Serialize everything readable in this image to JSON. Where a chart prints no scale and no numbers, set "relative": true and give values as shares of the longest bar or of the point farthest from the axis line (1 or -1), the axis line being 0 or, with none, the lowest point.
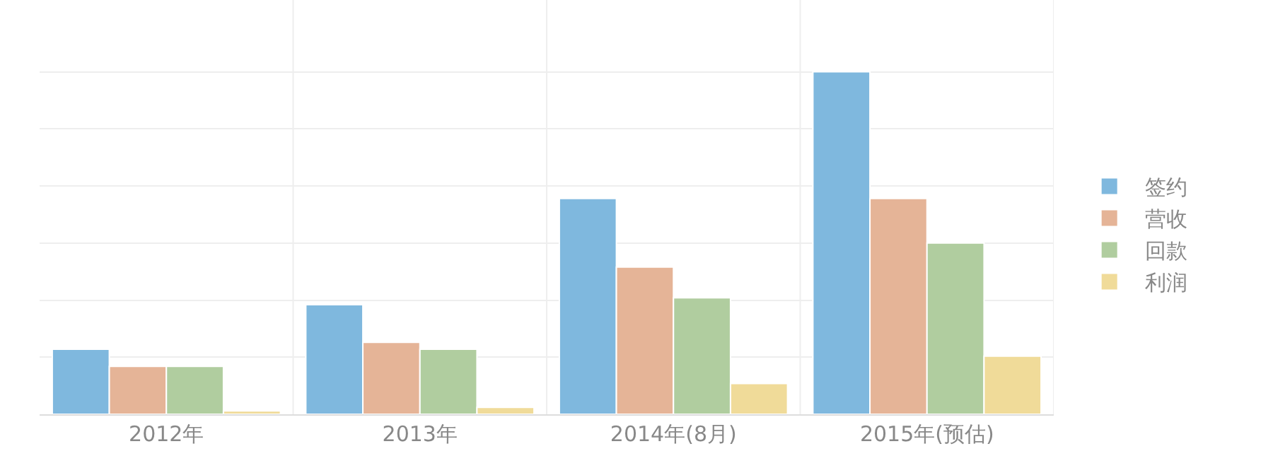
{
  "chart_data": {
    "type": "bar",
    "relative": true,
    "categories": [
      "2012年",
      "2013年",
      "2014年(8月)",
      "2015年(预估)"
    ],
    "series": [
      {
        "name": "签约",
        "color": "#7fb8de",
        "values": [
          0.19,
          0.32,
          0.63,
          1
        ]
      },
      {
        "name": "营收",
        "color": "#e5b497",
        "values": [
          0.14,
          0.21,
          0.43,
          0.63
        ]
      },
      {
        "name": "回款",
        "color": "#b0cd9f",
        "values": [
          0.14,
          0.19,
          0.34,
          0.5
        ]
      },
      {
        "name": "利润",
        "color": "#f0db99",
        "values": [
          0.01,
          0.02,
          0.09,
          0.17
        ]
      }
    ],
    "grid": true,
    "legend": "right"
  }
}
